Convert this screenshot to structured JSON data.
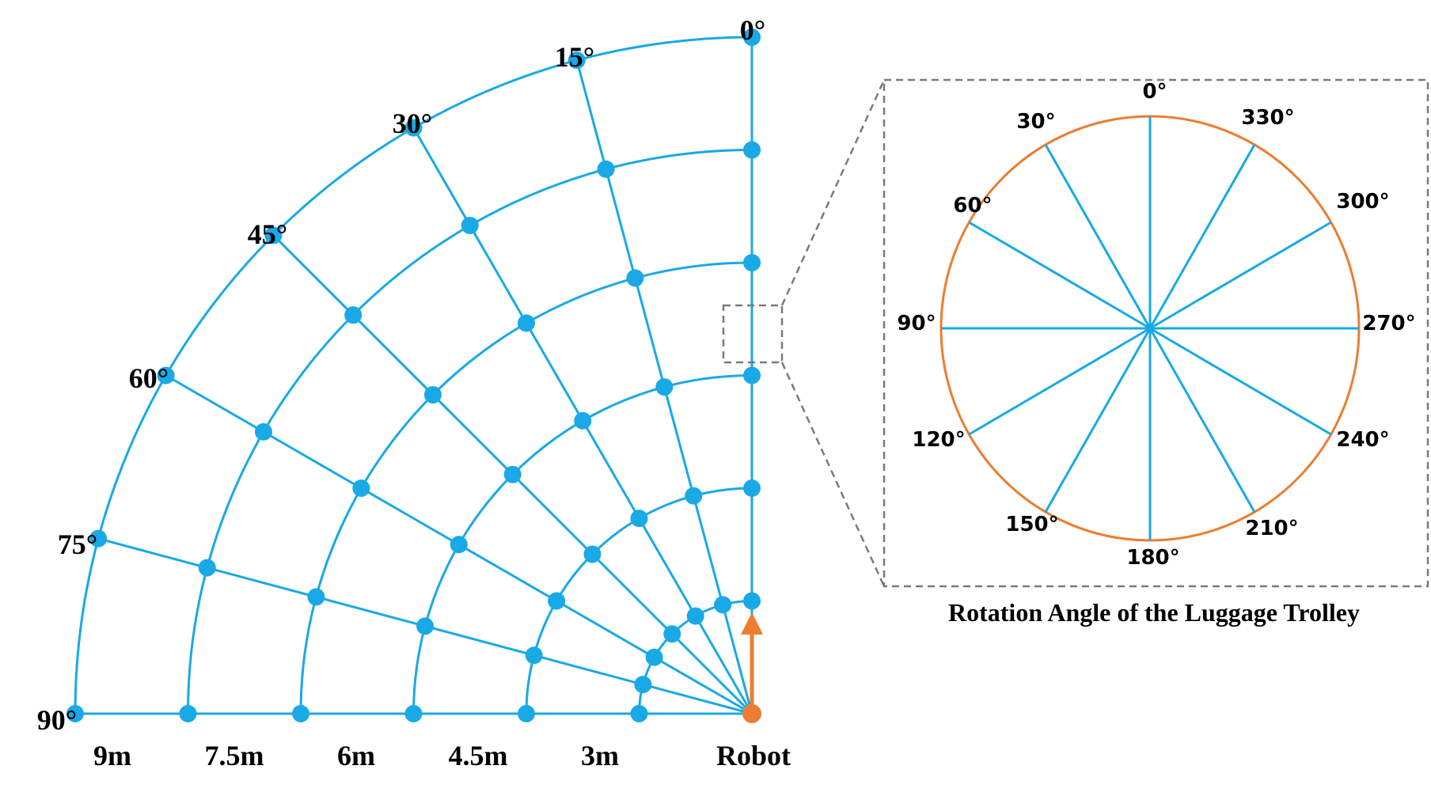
{
  "colors": {
    "grid": "#19a9e6",
    "robot": "#ec7d31",
    "dial": "#ec7d31",
    "dashed": "#7a7a7a",
    "text": "#000000"
  },
  "grid": {
    "angles_deg": [
      0,
      15,
      30,
      45,
      60,
      75,
      90
    ],
    "angle_labels": [
      "0°",
      "15°",
      "30°",
      "45°",
      "60°",
      "75°",
      "90°"
    ],
    "distances_m": [
      1.5,
      3,
      4.5,
      6,
      7.5,
      9
    ],
    "distance_labels": [
      "3m",
      "4.5m",
      "6m",
      "7.5m",
      "9m"
    ],
    "robot_label": "Robot"
  },
  "dial": {
    "title": "Rotation Angle of the Luggage Trolley",
    "spokes_deg": [
      0,
      30,
      60,
      90,
      120,
      150,
      180,
      210,
      240,
      270,
      300,
      330
    ],
    "labels": [
      "0°",
      "30°",
      "60°",
      "90°",
      "120°",
      "150°",
      "180°",
      "210°",
      "240°",
      "270°",
      "300°",
      "330°"
    ]
  }
}
